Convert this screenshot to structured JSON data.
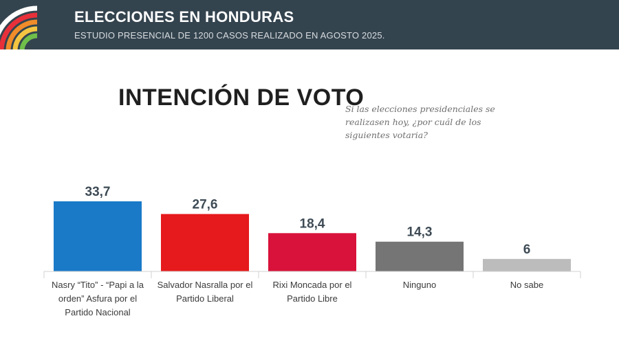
{
  "header": {
    "title": "ELECCIONES EN HONDURAS",
    "subtitle": "ESTUDIO PRESENCIAL DE 1200 CASOS REALIZADO EN AGOSTO 2025."
  },
  "question": "Si las elecciones presidenciales se realizasen hoy, ¿por cuál de los siguientes votaria?",
  "chart_data": {
    "type": "bar",
    "title": "INTENCIÓN DE VOTO",
    "categories": [
      "Nasry “Tito” - “Papi a la orden” Asfura por el Partido Nacional",
      "Salvador Nasralla por el Partido Liberal",
      "Rixi Moncada por el Partido Libre",
      "Ninguno",
      "No sabe"
    ],
    "values": [
      33.7,
      27.6,
      18.4,
      14.3,
      6
    ],
    "value_labels": [
      "33,7",
      "27,6",
      "18,4",
      "14,3",
      "6"
    ],
    "colors": [
      "#1a7ac8",
      "#e6191c",
      "#d8123a",
      "#757575",
      "#bcbcbc"
    ],
    "xlabel": "",
    "ylabel": "",
    "ylim": [
      0,
      33.7
    ],
    "grid": false,
    "legend": "none"
  }
}
